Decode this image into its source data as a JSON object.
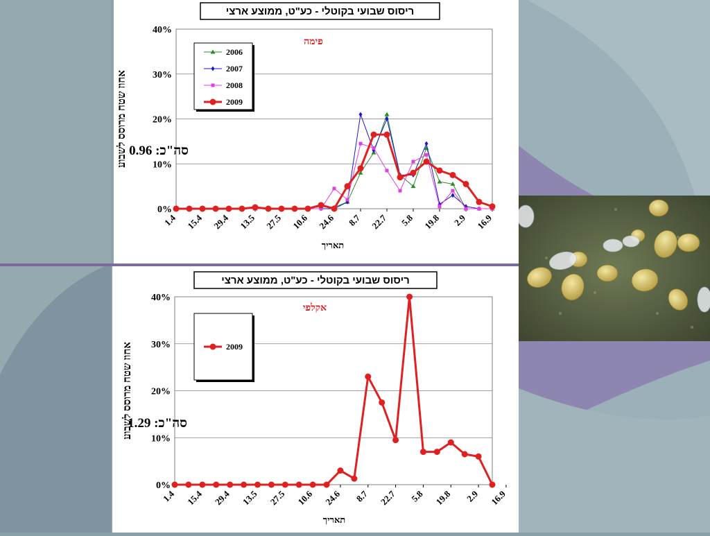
{
  "slide": {
    "background_color": "#8aa0a8",
    "accent_dark": "#7a6d99",
    "accent_light": "#a8b8c0"
  },
  "photo": {
    "icon": "whitefly-photo-icon"
  },
  "chart_data": [
    {
      "type": "line",
      "title": "ריסוס שבועי בקוטלי - כע\"ט, ממוצע ארצי",
      "crop_label": "פימה",
      "total_label": "סה\"כ: 0.96",
      "ylabel": "אחוז שטח מרוסס לשבוע",
      "xlabel": "תאריך",
      "ylim": [
        0,
        40
      ],
      "yticks": [
        "0%",
        "10%",
        "20%",
        "30%",
        "40%"
      ],
      "x_tick_labels": [
        "1.4",
        "15.4",
        "29.4",
        "13.5",
        "27.5",
        "10.6",
        "24.6",
        "8.7",
        "22.7",
        "5.8",
        "19.8",
        "2.9",
        "16.9"
      ],
      "legend_position": "top-left",
      "series": [
        {
          "name": "2006",
          "color": "#2e8b2e",
          "marker": "triangle",
          "values": [
            0,
            0,
            0,
            0,
            0,
            0,
            0,
            0,
            0,
            0,
            0,
            0.5,
            0.3,
            1.5,
            8,
            12.5,
            21,
            7.5,
            5,
            13.5,
            6,
            5.5,
            0,
            0,
            0
          ]
        },
        {
          "name": "2007",
          "color": "#1a1acc",
          "marker": "diamond",
          "values": [
            0,
            0,
            0,
            0,
            0,
            0,
            0,
            0,
            0,
            0,
            0,
            0,
            0,
            1.5,
            21,
            13,
            20,
            7.5,
            7.5,
            14.5,
            1,
            3,
            0.5,
            0,
            0
          ]
        },
        {
          "name": "2008",
          "color": "#e040e0",
          "marker": "square",
          "values": [
            0,
            0,
            0,
            0,
            0,
            0,
            0,
            0,
            0,
            0,
            0,
            0,
            4.5,
            2,
            14.5,
            13.5,
            8.5,
            4,
            10.5,
            12,
            0.5,
            4,
            0,
            0,
            0
          ]
        },
        {
          "name": "2009",
          "color": "#e02020",
          "marker": "circle",
          "values": [
            0,
            0,
            0,
            0,
            0,
            0,
            0.3,
            0,
            0,
            0,
            0,
            0.8,
            0,
            5,
            9,
            16.5,
            16.5,
            7,
            8,
            10.5,
            8.5,
            7.5,
            5.5,
            1.5,
            0.5
          ]
        }
      ]
    },
    {
      "type": "line",
      "title": "ריסוס שבועי בקוטלי - כע\"ט, ממוצע ארצי",
      "crop_label": "אקלפי",
      "total_label": "סה\"כ: 1.29",
      "ylabel": "אחוז שטח מרוסס לשבוע",
      "xlabel": "תאריך",
      "ylim": [
        0,
        40
      ],
      "yticks": [
        "0%",
        "10%",
        "20%",
        "30%",
        "40%"
      ],
      "x_tick_labels": [
        "1.4",
        "15.4",
        "29.4",
        "13.5",
        "27.5",
        "10.6",
        "24.6",
        "8.7",
        "22.7",
        "5.8",
        "19.8",
        "2.9",
        "16.9"
      ],
      "legend_position": "top-left",
      "series": [
        {
          "name": "2009",
          "color": "#e02020",
          "marker": "circle",
          "values": [
            0,
            0,
            0,
            0,
            0,
            0,
            0,
            0,
            0,
            0,
            0,
            0,
            3,
            1.3,
            23,
            17.5,
            9.5,
            40,
            7,
            7,
            9,
            6.5,
            6,
            0
          ]
        }
      ]
    }
  ]
}
